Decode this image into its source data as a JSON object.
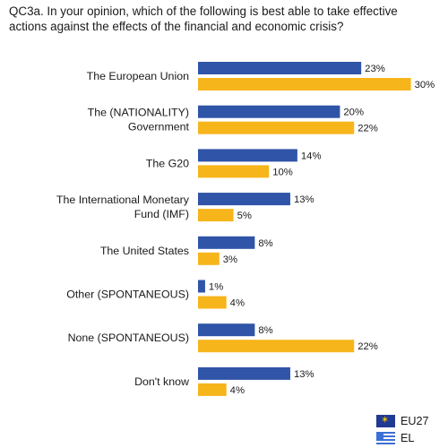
{
  "title": "QC3a. In your opinion, which of the following is best able to take effective actions against the effects of the financial and economic crisis?",
  "colors": {
    "eu27": "#2f54a8",
    "el": "#f7b51c"
  },
  "chart_data": {
    "type": "bar",
    "orientation": "horizontal",
    "categories": [
      [
        "The European Union"
      ],
      [
        "The (NATIONALITY)",
        "Government"
      ],
      [
        "The G20"
      ],
      [
        "The International Monetary",
        "Fund (IMF)"
      ],
      [
        "The United States"
      ],
      [
        "Other (SPONTANEOUS)"
      ],
      [
        "None (SPONTANEOUS)"
      ],
      [
        "Don't know"
      ]
    ],
    "series": [
      {
        "name": "EU27",
        "values": [
          23,
          20,
          14,
          13,
          8,
          1,
          8,
          13
        ],
        "labels": [
          "23%",
          "20%",
          "14%",
          "13%",
          "8%",
          "1%",
          "8%",
          "13%"
        ]
      },
      {
        "name": "EL",
        "values": [
          30,
          22,
          10,
          5,
          3,
          4,
          22,
          4
        ],
        "labels": [
          "30%",
          "22%",
          "10%",
          "5%",
          "3%",
          "4%",
          "22%",
          "4%"
        ]
      }
    ],
    "unit": "%",
    "xlim": [
      0,
      30
    ],
    "grid": false,
    "legend_position": "bottom-right"
  }
}
